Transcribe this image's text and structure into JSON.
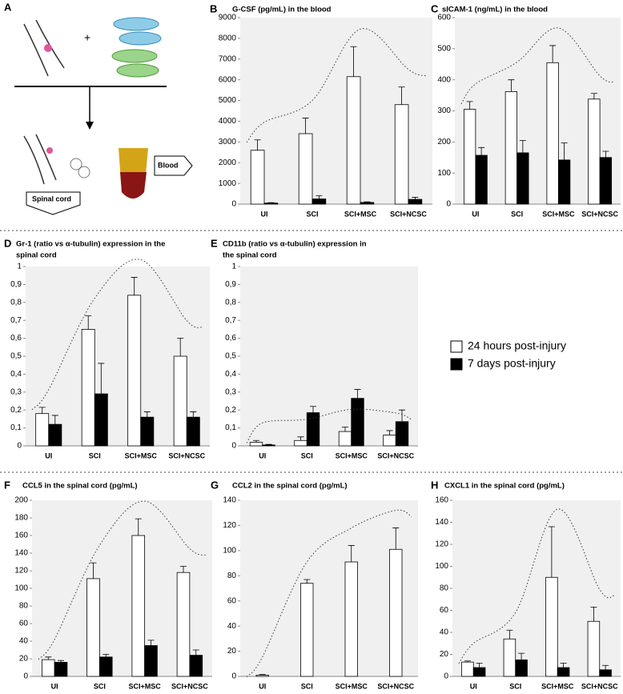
{
  "panel_labels": [
    "A",
    "B",
    "C",
    "D",
    "E",
    "F",
    "G",
    "H"
  ],
  "diagram": {
    "plus": "+",
    "blood": "Blood",
    "spinal_cord": "Spinal cord"
  },
  "legend": [
    "24 hours post-injury",
    "7 days post-injury"
  ],
  "chart_data": [
    {
      "type": "bar",
      "title": [
        "G-CSF (pg/mL) in the blood"
      ],
      "categories": [
        "UI",
        "SCI",
        "SCI+MSC",
        "SCI+NCSC"
      ],
      "series": [
        {
          "color": "#ffffff",
          "values": [
            2600,
            3400,
            6150,
            4800
          ],
          "errors": [
            500,
            750,
            1450,
            850
          ]
        },
        {
          "color": "#000000",
          "values": [
            50,
            250,
            80,
            230
          ],
          "errors": [
            20,
            150,
            30,
            100
          ]
        }
      ],
      "ylim": [
        0,
        9000
      ],
      "yticks": [
        0,
        1000,
        2000,
        3000,
        4000,
        5000,
        6000,
        7000,
        8000,
        9000
      ]
    },
    {
      "type": "bar",
      "title": [
        "sICAM-1 (ng/mL) in the blood"
      ],
      "categories": [
        "UI",
        "SCI",
        "SCI+MSC",
        "SCI+NCSC"
      ],
      "series": [
        {
          "color": "#ffffff",
          "values": [
            305,
            362,
            455,
            338
          ],
          "errors": [
            25,
            38,
            55,
            18
          ]
        },
        {
          "color": "#000000",
          "values": [
            157,
            165,
            142,
            150
          ],
          "errors": [
            25,
            40,
            55,
            20
          ]
        }
      ],
      "ylim": [
        0,
        600
      ],
      "yticks": [
        0,
        100,
        200,
        300,
        400,
        500,
        600
      ]
    },
    {
      "type": "bar",
      "title": [
        "Gr-1 (ratio vs α-tubulin) expression in the",
        "spinal cord"
      ],
      "categories": [
        "UI",
        "SCI",
        "SCI+MSC",
        "SCI+NCSC"
      ],
      "series": [
        {
          "color": "#ffffff",
          "values": [
            0.18,
            0.65,
            0.84,
            0.5
          ],
          "errors": [
            0.035,
            0.075,
            0.1,
            0.1
          ]
        },
        {
          "color": "#000000",
          "values": [
            0.12,
            0.29,
            0.16,
            0.16
          ],
          "errors": [
            0.05,
            0.17,
            0.03,
            0.03
          ]
        }
      ],
      "ylim": [
        0,
        1
      ],
      "yticks": [
        0,
        {
          "value": 0.1,
          "label": "0,1"
        },
        {
          "value": 0.2,
          "label": "0,2"
        },
        {
          "value": 0.3,
          "label": "0,3"
        },
        {
          "value": 0.4,
          "label": "0,4"
        },
        {
          "value": 0.5,
          "label": "0,5"
        },
        {
          "value": 0.6,
          "label": "0,6"
        },
        {
          "value": 0.7,
          "label": "0,7"
        },
        {
          "value": 0.8,
          "label": "0,8"
        },
        {
          "value": 0.9,
          "label": "0,9"
        },
        1
      ]
    },
    {
      "type": "bar",
      "title": [
        "CD11b (ratio vs α-tubulin) expression in",
        "the spinal cord"
      ],
      "categories": [
        "UI",
        "SCI",
        "SCI+MSC",
        "SCI+NCSC"
      ],
      "series": [
        {
          "color": "#ffffff",
          "values": [
            0.02,
            0.03,
            0.08,
            0.06
          ],
          "errors": [
            0.01,
            0.02,
            0.025,
            0.025
          ]
        },
        {
          "color": "#000000",
          "values": [
            0.005,
            0.185,
            0.265,
            0.135
          ],
          "errors": [
            0.003,
            0.035,
            0.05,
            0.065
          ]
        }
      ],
      "ylim": [
        0,
        1
      ],
      "yticks": [
        0,
        {
          "value": 0.1,
          "label": "0,1"
        },
        {
          "value": 0.2,
          "label": "0,2"
        },
        {
          "value": 0.3,
          "label": "0,3"
        },
        {
          "value": 0.4,
          "label": "0,4"
        },
        {
          "value": 0.5,
          "label": "0,5"
        },
        {
          "value": 0.6,
          "label": "0,6"
        },
        {
          "value": 0.7,
          "label": "0,7"
        },
        {
          "value": 0.8,
          "label": "0,8"
        },
        {
          "value": 0.9,
          "label": "0,9"
        },
        1
      ]
    },
    {
      "type": "bar",
      "title": [
        "CCL5 in the spinal cord (pg/mL)"
      ],
      "categories": [
        "UI",
        "SCI",
        "SCI+MSC",
        "SCI+NCSC"
      ],
      "series": [
        {
          "color": "#ffffff",
          "values": [
            19,
            111,
            160,
            118
          ],
          "errors": [
            3,
            18,
            19,
            7
          ]
        },
        {
          "color": "#000000",
          "values": [
            16,
            22,
            35,
            24
          ],
          "errors": [
            2,
            3,
            6,
            6
          ]
        }
      ],
      "ylim": [
        0,
        200
      ],
      "yticks": [
        0,
        20,
        40,
        60,
        80,
        100,
        120,
        140,
        160,
        180,
        200
      ]
    },
    {
      "type": "bar",
      "title": [
        "CCL2 in the spinal cord (pg/mL)"
      ],
      "categories": [
        "UI",
        "SCI",
        "SCI+MSC",
        "SCI+NCSC"
      ],
      "series": [
        {
          "color": "#ffffff",
          "values": [
            1,
            74,
            91,
            101
          ],
          "errors": [
            0.5,
            3,
            13,
            17
          ]
        }
      ],
      "ylim": [
        0,
        140
      ],
      "yticks": [
        0,
        20,
        40,
        60,
        80,
        100,
        120,
        140
      ]
    },
    {
      "type": "bar",
      "title": [
        "CXCL1 in the spinal cord (pg/mL)"
      ],
      "categories": [
        "UI",
        "SCI",
        "SCI+MSC",
        "SCI+NCSC"
      ],
      "series": [
        {
          "color": "#ffffff",
          "values": [
            13,
            34,
            90,
            50
          ],
          "errors": [
            1,
            8,
            46,
            13
          ]
        },
        {
          "color": "#000000",
          "values": [
            8,
            15,
            8,
            6
          ],
          "errors": [
            4,
            6,
            4,
            4
          ]
        }
      ],
      "ylim": [
        0,
        160
      ],
      "yticks": [
        0,
        20,
        40,
        60,
        80,
        100,
        120,
        140,
        160
      ]
    }
  ]
}
